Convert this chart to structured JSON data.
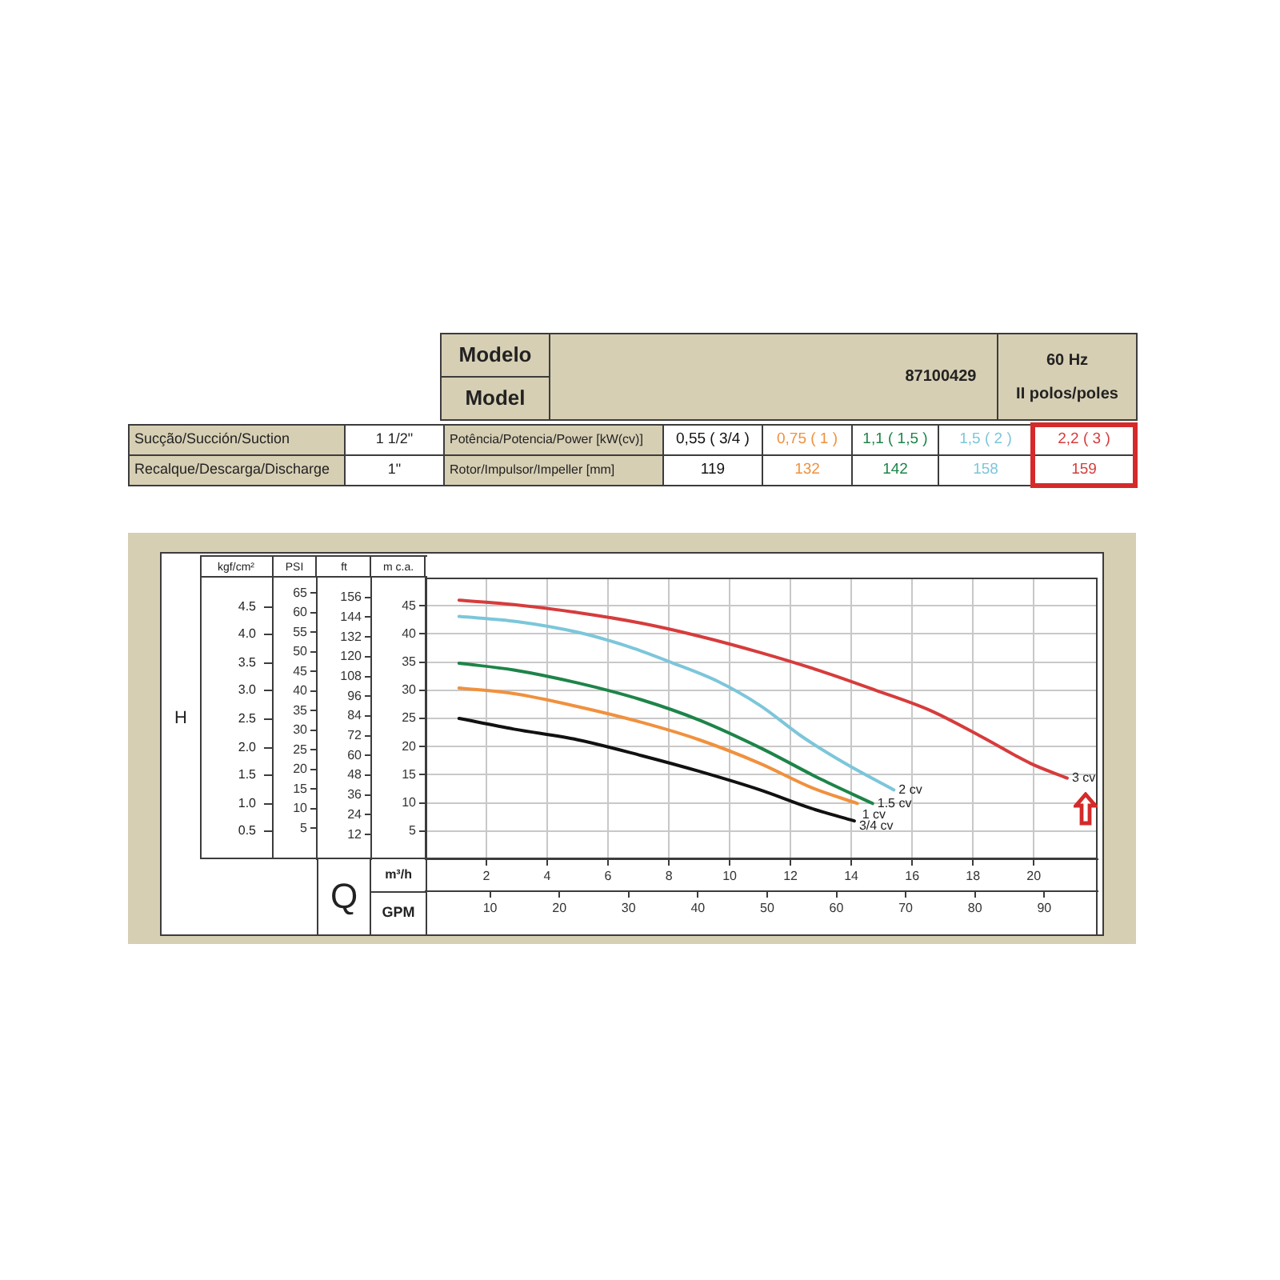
{
  "chart_data": [
    {
      "type": "other",
      "annotations": [
        "Modelo",
        "Model",
        "87100429",
        "60 Hz",
        "II polos/poles",
        "Sucção/Succión/Suction",
        "1 1/2\"",
        "Potência/Potencia/Power [kW(cv)]",
        "0,55 ( 3/4 )",
        "0,75 ( 1 )",
        "1,1 ( 1,5 )",
        "1,5 ( 2 )",
        "2,2 ( 3 )",
        "Recalque/Descarga/Discharge",
        "1\"",
        "Rotor/Impulsor/Impeller [mm]",
        "119",
        "132",
        "142",
        "158",
        "159"
      ]
    },
    {
      "type": "line",
      "xlabel": "m³/h",
      "x2label": "GPM",
      "ylabel": "m c.a.",
      "y2label": "PSI",
      "y3label": "ft",
      "annotations": [
        "H",
        "Q",
        "kgf/cm²",
        "4.5",
        "4.0",
        "3.5",
        "3.0",
        "2.5",
        "2.0",
        "1.5",
        "1.0",
        "0.5"
      ],
      "xlim": [
        0,
        22.1
      ],
      "xticks": [
        2,
        4,
        6,
        8,
        10,
        12,
        14,
        16,
        18,
        20
      ],
      "x2lim": [
        0.7,
        97.7
      ],
      "x2ticks": [
        10,
        20,
        30,
        40,
        50,
        60,
        70,
        80,
        90
      ],
      "ylim": [
        0,
        50
      ],
      "yticks": [
        5,
        10,
        15,
        20,
        25,
        30,
        35,
        40,
        45
      ],
      "y2lim": [
        -2.9,
        68.9
      ],
      "y2ticks": [
        5,
        10,
        15,
        20,
        25,
        30,
        35,
        40,
        45,
        50,
        55,
        60,
        65
      ],
      "y3lim": [
        -3,
        168
      ],
      "y3ticks": [
        12,
        24,
        36,
        48,
        60,
        72,
        84,
        96,
        108,
        120,
        132,
        144,
        156
      ],
      "grid": true,
      "series": [
        {
          "name": "3/4 cv",
          "color": "#111111",
          "x": [
            1.1,
            2.9,
            5.0,
            7.1,
            9.0,
            11.0,
            12.7,
            14.1
          ],
          "values": [
            25.0,
            23.1,
            21.2,
            18.4,
            15.6,
            12.3,
            9.0,
            6.8
          ]
        },
        {
          "name": "1 cv",
          "color": "#f0913e",
          "x": [
            1.1,
            2.9,
            5.0,
            7.1,
            9.0,
            11.0,
            12.7,
            14.2
          ],
          "values": [
            30.4,
            29.4,
            27.1,
            24.3,
            21.2,
            17.0,
            12.7,
            9.9
          ]
        },
        {
          "name": "1.5 cv",
          "color": "#1e8449",
          "x": [
            1.1,
            2.9,
            5.0,
            7.1,
            9.0,
            11.0,
            13.0,
            14.7
          ],
          "values": [
            34.8,
            33.6,
            31.3,
            28.3,
            24.7,
            19.8,
            14.2,
            9.9
          ]
        },
        {
          "name": "2 cv",
          "color": "#7cc6da",
          "x": [
            1.1,
            3.0,
            5.0,
            6.7,
            8.1,
            9.6,
            11.0,
            12.4,
            13.8,
            15.4
          ],
          "values": [
            43.1,
            42.2,
            40.3,
            37.7,
            34.9,
            31.6,
            27.3,
            21.7,
            17.0,
            12.3
          ]
        },
        {
          "name": "3 cv",
          "color": "#d63c3c",
          "x": [
            1.1,
            2.9,
            5.0,
            7.1,
            9.0,
            11.0,
            13.0,
            14.8,
            16.6,
            18.3,
            19.9,
            21.1
          ],
          "values": [
            46.0,
            45.2,
            43.8,
            41.9,
            39.6,
            36.7,
            33.4,
            30.0,
            26.4,
            21.7,
            17.0,
            14.4
          ]
        }
      ]
    }
  ]
}
